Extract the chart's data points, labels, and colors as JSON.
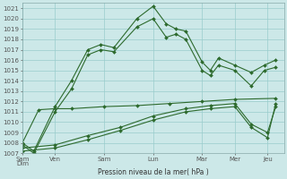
{
  "background_color": "#cce8e8",
  "grid_color": "#99cccc",
  "line_color": "#2d6a2d",
  "xlabel": "Pression niveau de la mer( hPa )",
  "ylim": [
    1007,
    1021.5
  ],
  "yticks": [
    1007,
    1008,
    1009,
    1010,
    1011,
    1012,
    1013,
    1014,
    1015,
    1016,
    1017,
    1018,
    1019,
    1020,
    1021
  ],
  "xtick_pos": [
    0,
    1.0,
    2.5,
    4.0,
    5.5,
    6.5,
    7.5
  ],
  "xtick_labels": [
    "Sam\nDim",
    "Ven",
    "Sam",
    "Lun",
    "Mar",
    "Mer",
    "Jeu"
  ],
  "xlim": [
    0,
    8.0
  ],
  "s1x": [
    0.0,
    0.35,
    1.0,
    1.5,
    2.0,
    2.4,
    2.8,
    3.5,
    4.0,
    4.4,
    4.7,
    5.0,
    5.5,
    5.75,
    6.0,
    6.5,
    7.0,
    7.4,
    7.75
  ],
  "s1y": [
    1008.0,
    1007.2,
    1011.5,
    1014.0,
    1017.0,
    1017.5,
    1017.2,
    1020.0,
    1021.2,
    1019.5,
    1019.0,
    1018.8,
    1015.8,
    1015.0,
    1016.2,
    1015.5,
    1014.8,
    1015.5,
    1016.0
  ],
  "s2x": [
    0.0,
    0.35,
    1.0,
    1.5,
    2.0,
    2.4,
    2.8,
    3.5,
    4.0,
    4.4,
    4.7,
    5.0,
    5.5,
    5.75,
    6.0,
    6.5,
    7.0,
    7.4,
    7.75
  ],
  "s2y": [
    1007.8,
    1007.0,
    1011.0,
    1013.2,
    1016.5,
    1017.0,
    1016.8,
    1019.2,
    1020.0,
    1018.2,
    1018.5,
    1018.0,
    1015.0,
    1014.5,
    1015.5,
    1015.0,
    1013.5,
    1015.0,
    1015.3
  ],
  "s3x": [
    0.0,
    0.5,
    1.0,
    1.5,
    2.5,
    3.5,
    4.5,
    5.5,
    6.5,
    7.75
  ],
  "s3y": [
    1008.0,
    1011.2,
    1011.3,
    1011.3,
    1011.5,
    1011.6,
    1011.8,
    1012.0,
    1012.2,
    1012.3
  ],
  "s4x": [
    0.0,
    1.0,
    2.0,
    3.0,
    4.0,
    5.0,
    5.75,
    6.5,
    7.0,
    7.5,
    7.75
  ],
  "s4y": [
    1007.2,
    1007.5,
    1008.3,
    1009.2,
    1010.2,
    1011.0,
    1011.3,
    1011.5,
    1009.5,
    1008.5,
    1011.8
  ],
  "s5x": [
    0.0,
    1.0,
    2.0,
    3.0,
    4.0,
    5.0,
    5.75,
    6.5,
    7.0,
    7.5,
    7.75
  ],
  "s5y": [
    1007.5,
    1007.8,
    1008.7,
    1009.5,
    1010.6,
    1011.3,
    1011.6,
    1011.8,
    1009.8,
    1009.0,
    1011.5
  ]
}
